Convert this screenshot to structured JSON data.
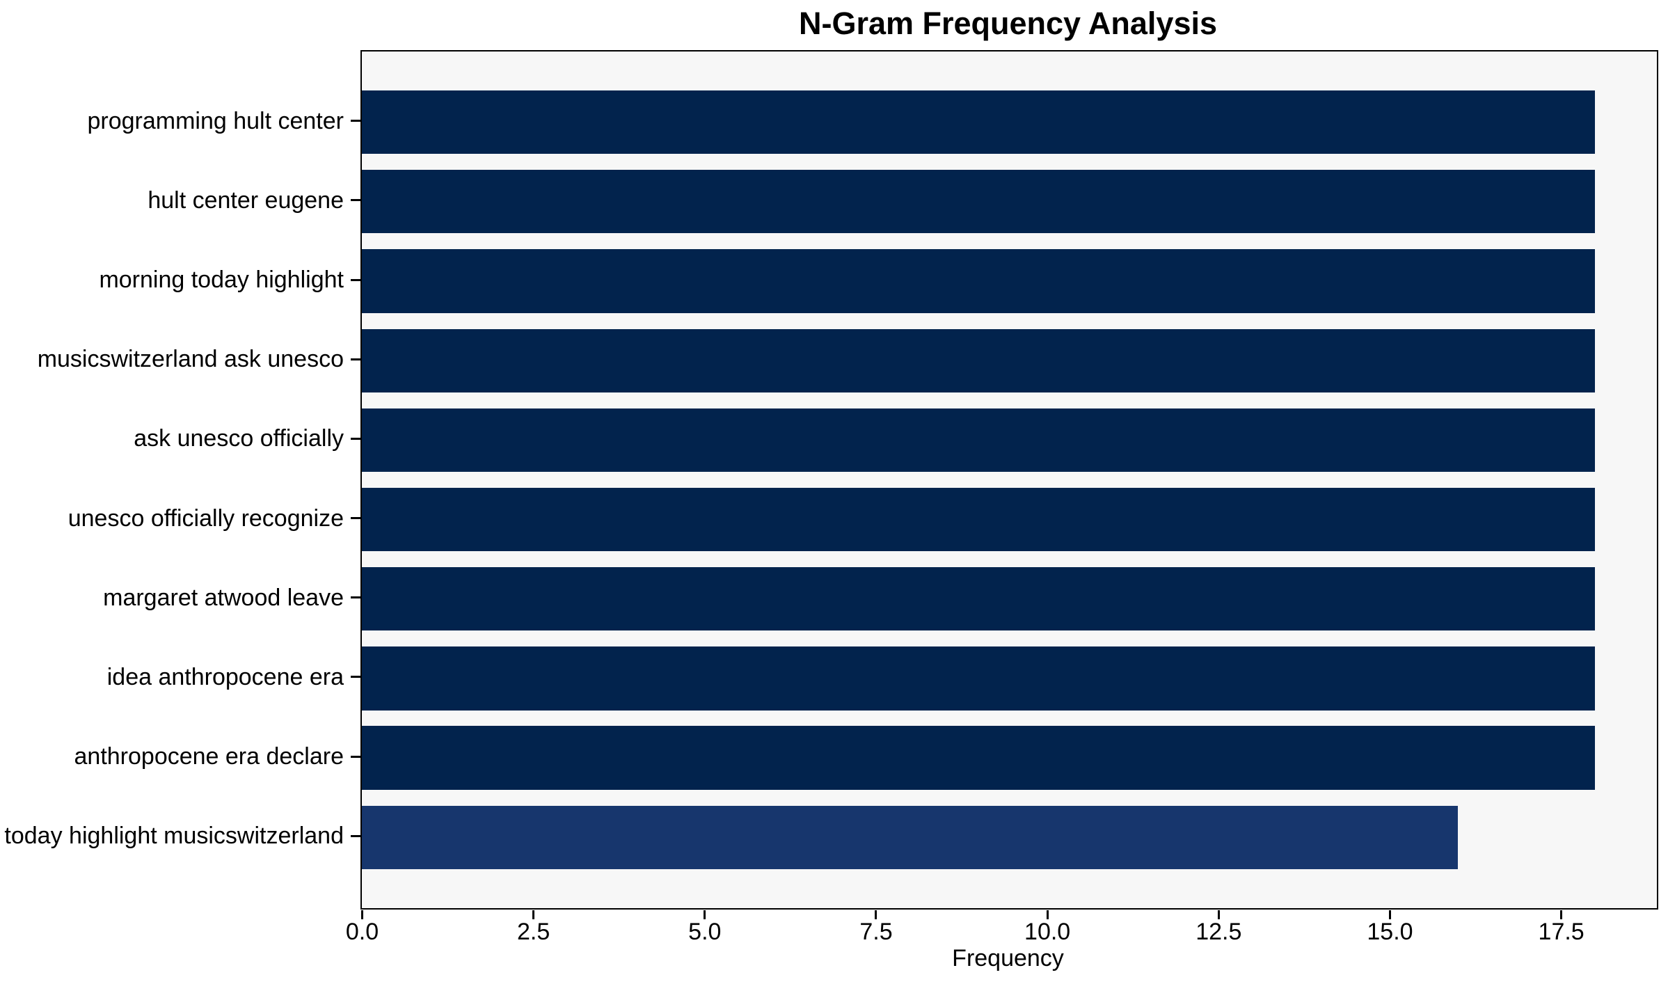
{
  "chart_data": {
    "type": "bar",
    "orientation": "horizontal",
    "title": "N-Gram Frequency Analysis",
    "xlabel": "Frequency",
    "ylabel": "",
    "categories": [
      "programming hult center",
      "hult center eugene",
      "morning today highlight",
      "musicswitzerland ask unesco",
      "ask unesco officially",
      "unesco officially recognize",
      "margaret atwood leave",
      "idea anthropocene era",
      "anthropocene era declare",
      "today highlight musicswitzerland"
    ],
    "values": [
      18,
      18,
      18,
      18,
      18,
      18,
      18,
      18,
      18,
      16
    ],
    "bar_colors": [
      "#02234d",
      "#02234d",
      "#02234d",
      "#02234d",
      "#02234d",
      "#02234d",
      "#02234d",
      "#02234d",
      "#02234d",
      "#17366d"
    ],
    "x_ticks": [
      {
        "value": 0,
        "label": "0.0"
      },
      {
        "value": 2.5,
        "label": "2.5"
      },
      {
        "value": 5,
        "label": "5.0"
      },
      {
        "value": 7.5,
        "label": "7.5"
      },
      {
        "value": 10,
        "label": "10.0"
      },
      {
        "value": 12.5,
        "label": "12.5"
      },
      {
        "value": 15,
        "label": "15.0"
      },
      {
        "value": 17.5,
        "label": "17.5"
      }
    ],
    "xlim": [
      0,
      18.9
    ],
    "grid": false,
    "legend": "none",
    "colors": {
      "bar_default": "#02234d",
      "bar_highlight": "#17366d",
      "plot_background": "#f7f7f7",
      "figure_background": "#ffffff",
      "spine": "#000000",
      "text": "#000000"
    }
  }
}
